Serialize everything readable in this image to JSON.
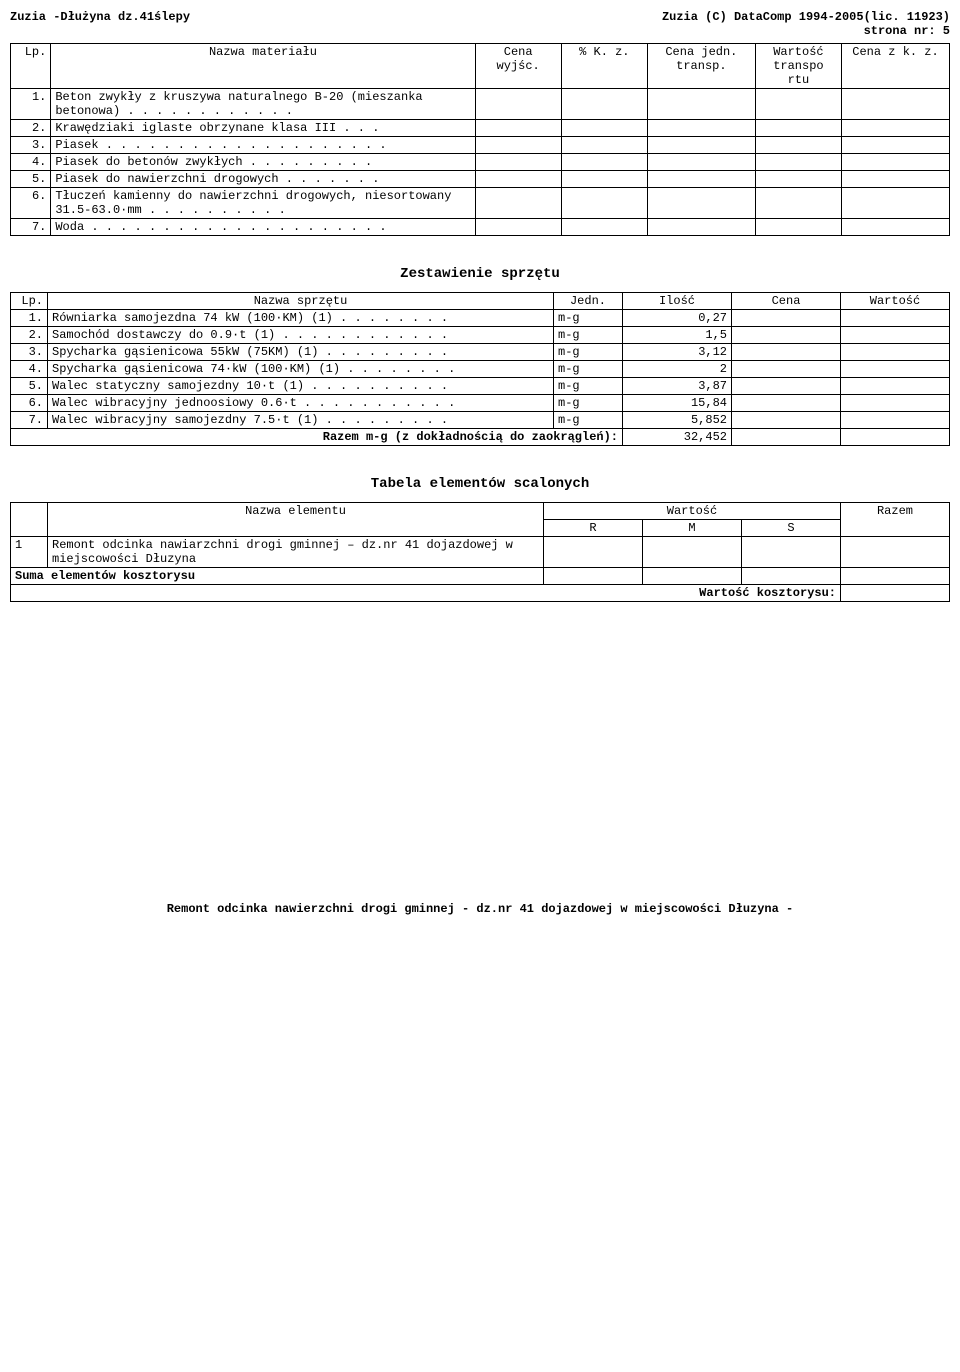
{
  "header": {
    "left": "Zuzia -Dłużyna dz.41ślepy",
    "right1": "Zuzia (C) DataComp 1994-2005(lic. 11923)",
    "right2": "strona nr:   5"
  },
  "materials": {
    "headers": {
      "lp": "Lp.",
      "name": "Nazwa materiału",
      "cena_wyjsc": "Cena wyjśc.",
      "k_z": "% K. z.",
      "cena_jedn": "Cena jedn. transp.",
      "wartosc": "Wartość transpo rtu",
      "cena_zk": "Cena z k. z."
    },
    "rows": [
      {
        "n": "1.",
        "name": "Beton zwykły z kruszywa naturalnego B-20 (mieszanka betonowa) . . . . . . . . . . . ."
      },
      {
        "n": "2.",
        "name": "Krawędziaki iglaste obrzynane klasa III . . ."
      },
      {
        "n": "3.",
        "name": "Piasek . . . . . . . . . . . . . . . . . . . ."
      },
      {
        "n": "4.",
        "name": "Piasek do betonów zwykłych . . . . . . . . ."
      },
      {
        "n": "5.",
        "name": "Piasek do nawierzchni drogowych . . . . . . ."
      },
      {
        "n": "6.",
        "name": "Tłuczeń kamienny do nawierzchni drogowych, niesortowany 31.5-63.0·mm . . . . . . . . . ."
      },
      {
        "n": "7.",
        "name": "Woda . . . . . . . . . . . . . . . . . . . . ."
      }
    ]
  },
  "equipment": {
    "title": "Zestawienie sprzętu",
    "headers": {
      "lp": "Lp.",
      "name": "Nazwa sprzętu",
      "jedn": "Jedn.",
      "ilosc": "Ilość",
      "cena": "Cena",
      "wartosc": "Wartość"
    },
    "rows": [
      {
        "n": "1.",
        "name": "Równiarka samojezdna 74 kW (100·KM) (1) . . . . . . . .",
        "jedn": "m-g",
        "ilosc": "0,27"
      },
      {
        "n": "2.",
        "name": "Samochód dostawczy do 0.9·t (1) . . . . . . . . . . . .",
        "jedn": "m-g",
        "ilosc": "1,5"
      },
      {
        "n": "3.",
        "name": "Spycharka gąsienicowa 55kW (75KM) (1) . . . . . . . . .",
        "jedn": "m-g",
        "ilosc": "3,12"
      },
      {
        "n": "4.",
        "name": "Spycharka gąsienicowa 74·kW (100·KM) (1) . . . . . . . .",
        "jedn": "m-g",
        "ilosc": "2"
      },
      {
        "n": "5.",
        "name": "Walec statyczny samojezdny 10·t (1) . . . . . . . . . .",
        "jedn": "m-g",
        "ilosc": "3,87"
      },
      {
        "n": "6.",
        "name": "Walec wibracyjny jednoosiowy 0.6·t . . . . . . . . . . .",
        "jedn": "m-g",
        "ilosc": "15,84"
      },
      {
        "n": "7.",
        "name": "Walec wibracyjny samojezdny 7.5·t (1) . . . . . . . . .",
        "jedn": "m-g",
        "ilosc": "5,852"
      }
    ],
    "totals_label": "Razem m-g (z dokładnością do zaokrągleń):",
    "totals_value": "32,452"
  },
  "elements": {
    "title": "Tabela elementów scalonych",
    "headers": {
      "name": "Nazwa elementu",
      "wartosc": "Wartość",
      "razem": "Razem",
      "r": "R",
      "m": "M",
      "s": "S"
    },
    "rows": [
      {
        "n": "1",
        "name": "Remont odcinka nawiarzchni drogi gminnej – dz.nr 41 dojazdowej w miejscowości Dłuzyna"
      }
    ],
    "sum_row": "Suma elementów kosztorysu",
    "wartosc_label": "Wartość kosztorysu:"
  },
  "footer": "Remont odcinka nawierzchni drogi gminnej - dz.nr 41 dojazdowej w miejscowości Dłuzyna -"
}
